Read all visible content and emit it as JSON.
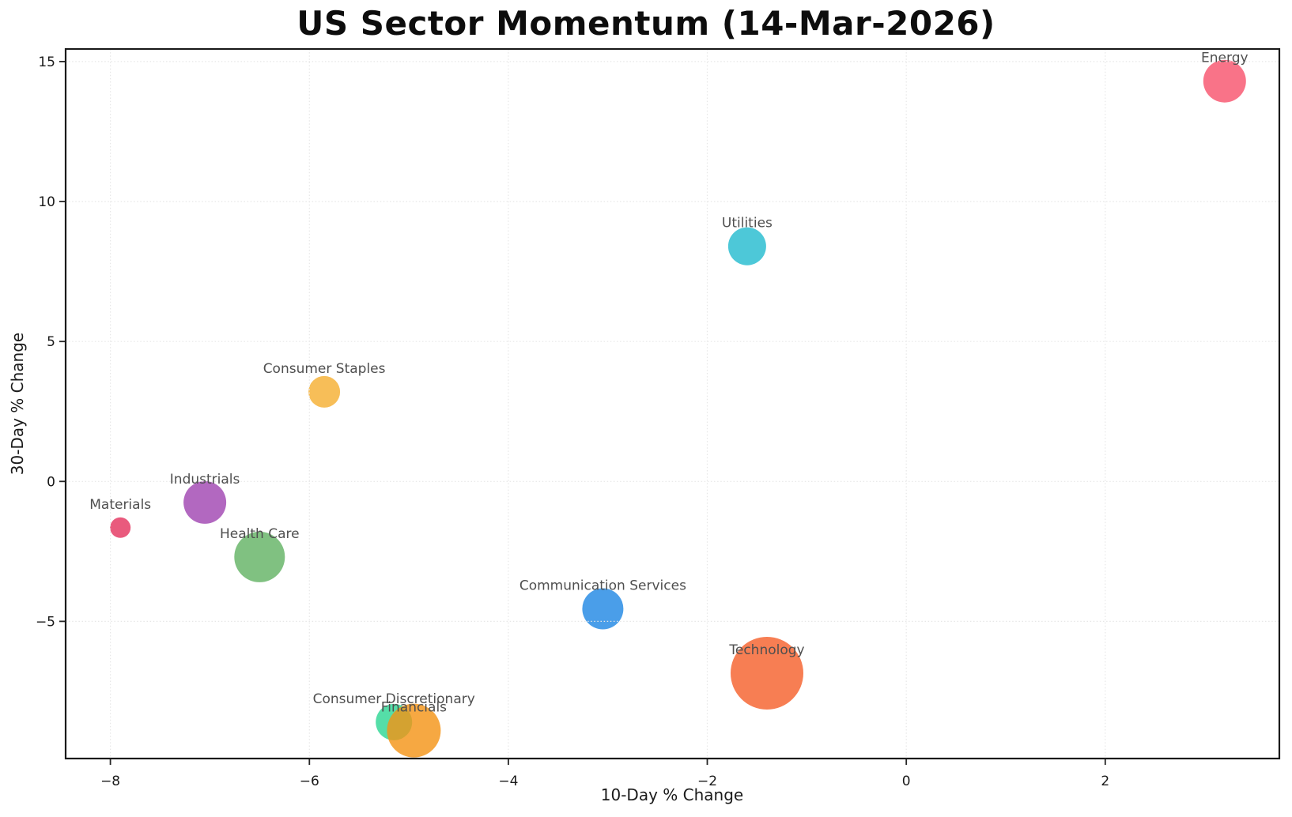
{
  "title": "US Sector Momentum (14-Mar-2026)",
  "axes": {
    "xlabel": "10-Day % Change",
    "ylabel": "30-Day % Change"
  },
  "chart_data": {
    "type": "scatter",
    "title": "US Sector Momentum (14-Mar-2026)",
    "xlabel": "10-Day % Change",
    "ylabel": "30-Day % Change",
    "xlim": [
      -8.45,
      3.75
    ],
    "ylim": [
      -9.9,
      15.45
    ],
    "xticks": [
      -8,
      -6,
      -4,
      -2,
      0,
      2
    ],
    "yticks": [
      15,
      10,
      5,
      0,
      -5
    ],
    "grid": true,
    "grid_style": "dotted",
    "legend": "none",
    "bubble_opacity": 0.8,
    "label_color": "#4f4f4f",
    "points": [
      {
        "label": "Energy",
        "x": 3.2,
        "y": 14.3,
        "r": 27,
        "color": "#F8506A"
      },
      {
        "label": "Utilities",
        "x": -1.6,
        "y": 8.4,
        "r": 24,
        "color": "#21BACE"
      },
      {
        "label": "Consumer Staples",
        "x": -5.85,
        "y": 3.2,
        "r": 20,
        "color": "#F5AE2E"
      },
      {
        "label": "Industrials",
        "x": -7.05,
        "y": -0.75,
        "r": 27,
        "color": "#9F42B0"
      },
      {
        "label": "Materials",
        "x": -7.9,
        "y": -1.65,
        "r": 13,
        "color": "#E4315D"
      },
      {
        "label": "Health Care",
        "x": -6.5,
        "y": -2.7,
        "r": 32,
        "color": "#60B262"
      },
      {
        "label": "Communication Services",
        "x": -3.05,
        "y": -4.55,
        "r": 26,
        "color": "#1D86E4"
      },
      {
        "label": "Technology",
        "x": -1.4,
        "y": -6.85,
        "r": 46,
        "color": "#F55E28"
      },
      {
        "label": "Consumer Discretionary",
        "x": -5.15,
        "y": -8.6,
        "r": 23,
        "color": "#2BD692"
      },
      {
        "label": "Financials",
        "x": -4.95,
        "y": -8.9,
        "r": 34,
        "color": "#F49213"
      }
    ]
  }
}
